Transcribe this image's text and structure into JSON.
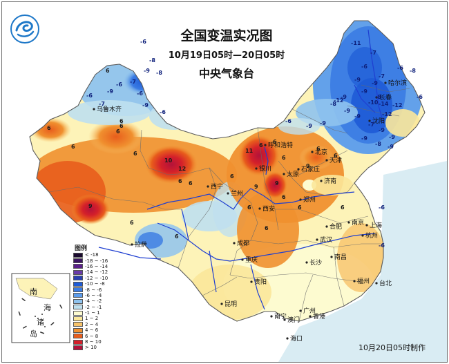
{
  "header": {
    "title": "全国变温实况图",
    "period": "10月19日05时—20日05时",
    "issuer": "中央气象台"
  },
  "footer": {
    "credit": "10月20日05时制作"
  },
  "legend": {
    "title": "图例",
    "items": [
      {
        "label": "< -18",
        "color": "#1a0a2e"
      },
      {
        "label": "-18 ~ -16",
        "color": "#3a1460"
      },
      {
        "label": "-16 ~ -14",
        "color": "#5a1f8a"
      },
      {
        "label": "-14 ~ -12",
        "color": "#6a3aa8"
      },
      {
        "label": "-12 ~ -10",
        "color": "#2a3fb0"
      },
      {
        "label": "-10 ~ -8",
        "color": "#1e5bd6"
      },
      {
        "label": "-8 ~ -6",
        "color": "#3a7be3"
      },
      {
        "label": "-6 ~ -4",
        "color": "#5b9cec"
      },
      {
        "label": "-4 ~ -2",
        "color": "#8fc3ee"
      },
      {
        "label": "-2 ~ -1",
        "color": "#bfe0ef"
      },
      {
        "label": "-1 ~ 1",
        "color": "#fdfbd0"
      },
      {
        "label": "1 ~ 2",
        "color": "#fbe79a"
      },
      {
        "label": "2 ~ 4",
        "color": "#f7c36a"
      },
      {
        "label": "4 ~ 6",
        "color": "#f0902f"
      },
      {
        "label": "6 ~ 8",
        "color": "#e85d1c"
      },
      {
        "label": "8 ~ 10",
        "color": "#d4202a"
      },
      {
        "label": "> 10",
        "color": "#b3123a"
      }
    ]
  },
  "cities": [
    "乌鲁木齐",
    "哈尔滨",
    "长春",
    "沈阳",
    "呼和浩特",
    "北京",
    "天津",
    "石家庄",
    "太原",
    "银川",
    "西宁",
    "兰州",
    "济南",
    "郑州",
    "西安",
    "合肥",
    "南京",
    "上海",
    "杭州",
    "成都",
    "武汉",
    "拉萨",
    "重庆",
    "长沙",
    "南昌",
    "福州",
    "贵阳",
    "台北",
    "昆明",
    "南宁",
    "广州",
    "香港",
    "澳门",
    "海口"
  ],
  "inset": {
    "labels": [
      "南",
      "海",
      "诸",
      "岛"
    ]
  },
  "values": [
    "6",
    "-8",
    "-9",
    "-8",
    "-6",
    "-7",
    "-6",
    "-9",
    "-6",
    "-6",
    "-9",
    "-7",
    "6",
    "6",
    "6",
    "-6",
    "-11",
    "-7",
    "-6",
    "-8",
    "-6",
    "-7",
    "-9",
    "-9",
    "-9",
    "-8",
    "-10",
    "-14",
    "-12",
    "-12",
    "-9",
    "-9",
    "-7",
    "-9",
    "-9",
    "-9",
    "-8",
    "-12",
    "-9",
    "-9",
    "-9",
    "-8",
    "-9",
    "-6",
    "-6",
    "11",
    "6",
    "6",
    "6",
    "9",
    "9",
    "6",
    "9",
    "6",
    "6",
    "6",
    "6",
    "6",
    "6",
    "10",
    "12",
    "6",
    "6",
    "9",
    "6",
    "6",
    "6",
    "6",
    "6",
    "-6",
    "6",
    "-6"
  ],
  "colors": {
    "sea": "#d9ecf3",
    "border": "#5a5a5a",
    "river": "#1f3fd1",
    "frame": "#6f6f6f"
  },
  "logo": {
    "icon": "weather-logo-icon"
  }
}
